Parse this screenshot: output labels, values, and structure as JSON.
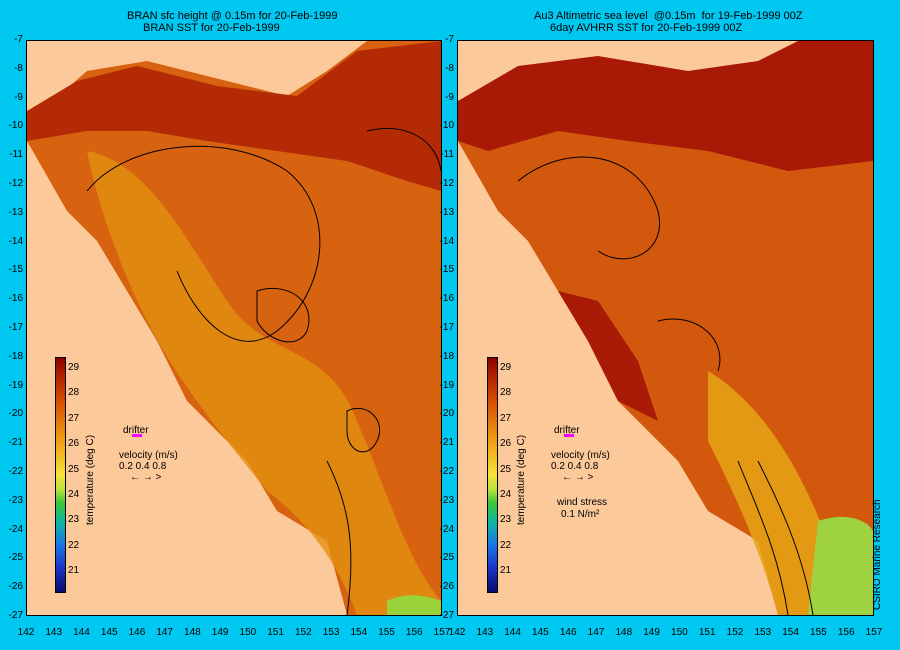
{
  "left": {
    "title_line1": "BRAN sfc height @ 0.15m for 20-Feb-1999",
    "title_line2": "BRAN SST for 20-Feb-1999",
    "drifter_label": "drifter",
    "velocity_label": "velocity (m/s)",
    "velocity_scale": "0.2 0.4 0.8"
  },
  "right": {
    "title_line1": "Au3 Altimetric sea level  @0.15m  for 19-Feb-1999 00Z",
    "title_line2": "6day AVHRR SST for 20-Feb-1999 00Z",
    "drifter_label": "drifter",
    "velocity_label": "velocity (m/s)",
    "velocity_scale": "0.2 0.4 0.8",
    "wind_label": "wind stress",
    "wind_value": "0.1 N/m²"
  },
  "colorbar": {
    "label": "temperature (deg C)",
    "ticks": [
      "29",
      "28",
      "27",
      "26",
      "25",
      "24",
      "23",
      "22",
      "21"
    ]
  },
  "axes": {
    "lat_ticks": [
      "-7",
      "-8",
      "-9",
      "-10",
      "-11",
      "-12",
      "-13",
      "-14",
      "-15",
      "-16",
      "-17",
      "-18",
      "-19",
      "-20",
      "-21",
      "-22",
      "-23",
      "-24",
      "-25",
      "-26",
      "-27"
    ],
    "lon_ticks_left": [
      "142",
      "143",
      "144",
      "145",
      "146",
      "147",
      "148",
      "149",
      "150",
      "151",
      "152",
      "153",
      "154",
      "155",
      "156",
      "157"
    ],
    "lon_ticks_right": [
      "142",
      "143",
      "144",
      "145",
      "146",
      "147",
      "148",
      "149",
      "150",
      "151",
      "152",
      "153",
      "154",
      "155",
      "156",
      "157"
    ]
  },
  "credit": "CSIRO Marine Research",
  "colors": {
    "background": "#00c8f0",
    "land": "#fbc99a",
    "ocean_warm": "#d65a10",
    "drifter": "#ff00ff"
  }
}
